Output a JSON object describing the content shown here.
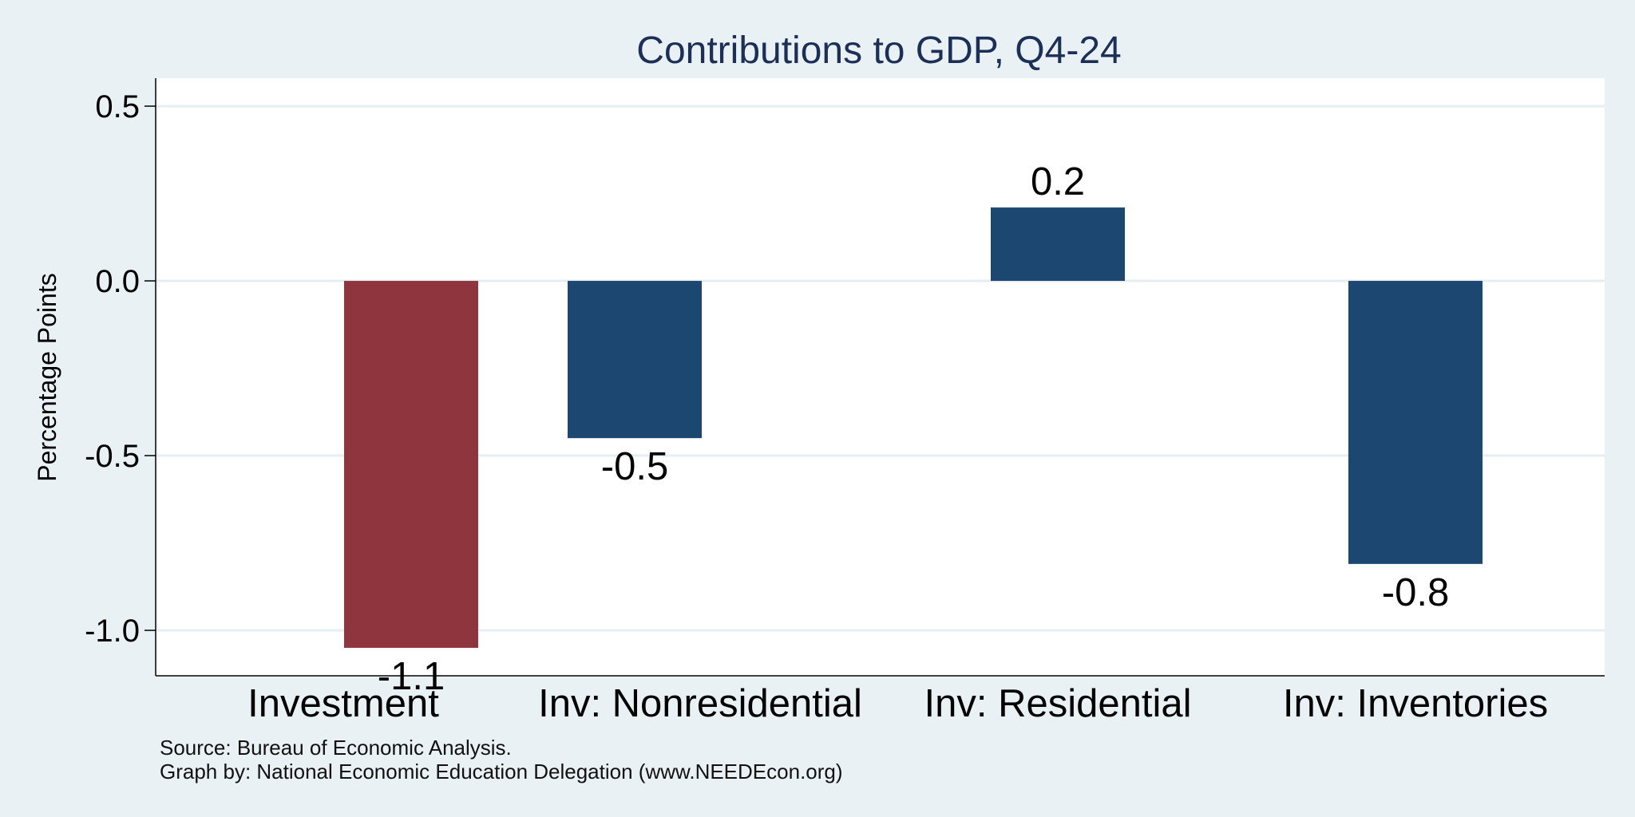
{
  "chart_data": {
    "type": "bar",
    "title": "Contributions to GDP, Q4-24",
    "ylabel": "Percentage Points",
    "xlabel": "",
    "ylim": [
      -1.13,
      0.58
    ],
    "yticks": [
      0.5,
      0.0,
      -0.5,
      -1.0
    ],
    "ytick_labels": [
      "0.5",
      "0.0",
      "-0.5",
      "-1.0"
    ],
    "grid": true,
    "groups": [
      {
        "category": "Investment",
        "bars": [
          {
            "value": -1.05,
            "label": "-1.1",
            "color": "#8f353d"
          }
        ]
      },
      {
        "category": "Inv: Nonresidential",
        "bars": [
          {
            "value": -0.45,
            "label": "-0.5",
            "color": "#1b4770"
          }
        ]
      },
      {
        "category": "Inv: Residential",
        "bars": [
          {
            "value": 0.21,
            "label": "0.2",
            "color": "#1b4770"
          }
        ]
      },
      {
        "category": "Inv: Inventories",
        "bars": [
          {
            "value": -0.81,
            "label": "-0.8",
            "color": "#1b4770"
          }
        ]
      }
    ]
  },
  "footnotes": {
    "source": "Source: Bureau of Economic Analysis.",
    "credit": "Graph by: National Economic Education Delegation (www.NEEDEcon.org)"
  },
  "colors": {
    "page_background": "#e9f1f4",
    "plot_background": "#ffffff",
    "title": "#1b2f57",
    "gridline": "#e6eef1"
  }
}
